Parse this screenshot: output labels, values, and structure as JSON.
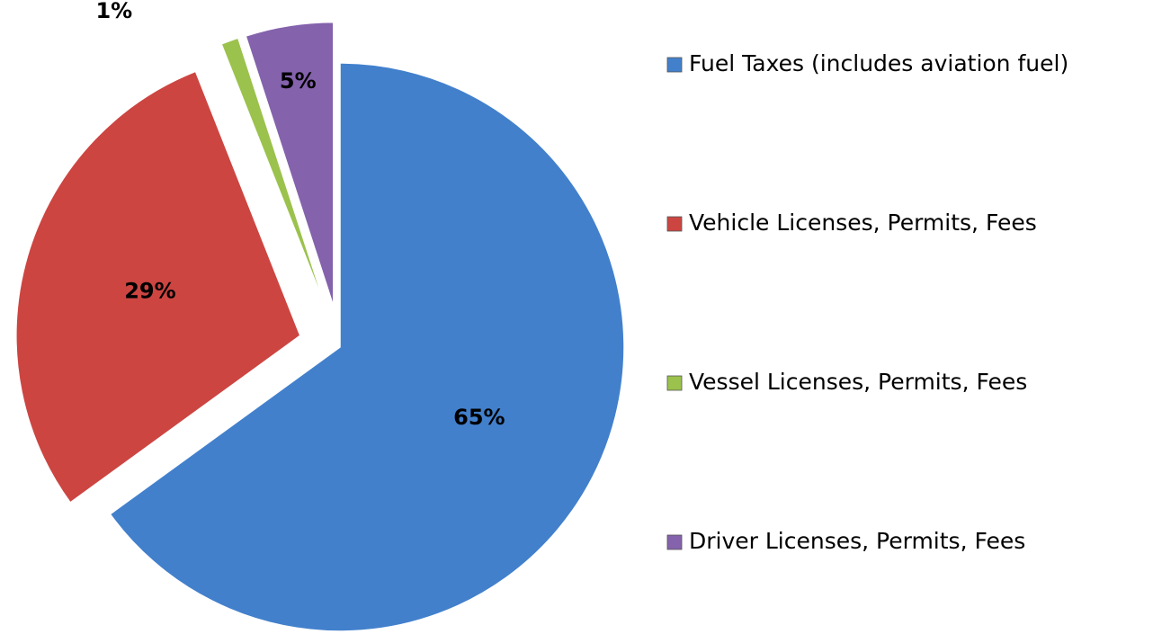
{
  "chart_data": {
    "type": "pie",
    "categories": [
      "Fuel Taxes (includes aviation fuel)",
      "Vehicle Licenses, Permits, Fees",
      "Vessel Licenses, Permits, Fees",
      "Driver Licenses, Permits, Fees"
    ],
    "values": [
      65,
      29,
      1,
      5
    ],
    "value_labels": [
      "65%",
      "29%",
      "1%",
      "5%"
    ],
    "colors": [
      "#4280cc",
      "#cc4541",
      "#9bc24c",
      "#8462ac"
    ],
    "legend": "right"
  }
}
